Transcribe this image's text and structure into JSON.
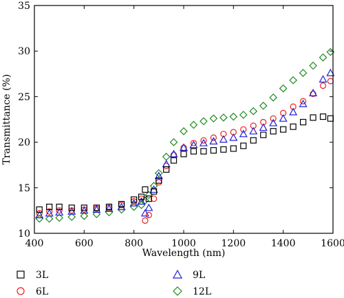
{
  "chart_data": {
    "type": "scatter",
    "title": "",
    "xlabel": "Wavelength (nm)",
    "ylabel": "Transmittance (%)",
    "xlim": [
      400,
      1600
    ],
    "ylim": [
      10,
      35
    ],
    "xticks": [
      400,
      600,
      800,
      1000,
      1200,
      1400,
      1600
    ],
    "yticks": [
      10,
      15,
      20,
      25,
      30,
      35
    ],
    "x_tick_labels": [
      "400",
      "600",
      "800",
      "1000",
      "1200",
      "1400",
      "1600"
    ],
    "y_tick_labels": [
      "10",
      "15",
      "20",
      "25",
      "30",
      "35"
    ],
    "grid": false,
    "legend_position": "bottom",
    "series": [
      {
        "name": "3L",
        "marker": "square",
        "color": "#000000",
        "x": [
          420,
          460,
          500,
          550,
          600,
          650,
          700,
          750,
          800,
          830,
          845,
          860,
          880,
          900,
          930,
          960,
          1000,
          1040,
          1080,
          1120,
          1160,
          1200,
          1240,
          1280,
          1320,
          1360,
          1400,
          1440,
          1480,
          1520,
          1560,
          1590
        ],
        "y": [
          12.6,
          12.9,
          12.9,
          12.8,
          12.8,
          12.8,
          12.9,
          13.2,
          13.7,
          14.0,
          14.8,
          13.8,
          14.6,
          15.8,
          17.0,
          18.0,
          18.7,
          19.0,
          19.0,
          19.1,
          19.2,
          19.3,
          19.6,
          20.2,
          20.8,
          21.2,
          21.4,
          21.7,
          22.2,
          22.7,
          22.8,
          22.6
        ]
      },
      {
        "name": "6L",
        "marker": "circle",
        "color": "#ee1c1c",
        "x": [
          420,
          460,
          500,
          550,
          600,
          650,
          700,
          750,
          800,
          830,
          845,
          860,
          880,
          900,
          930,
          960,
          1000,
          1040,
          1080,
          1120,
          1160,
          1200,
          1240,
          1280,
          1320,
          1360,
          1400,
          1440,
          1480,
          1520,
          1560,
          1590
        ],
        "y": [
          12.2,
          12.4,
          12.5,
          12.5,
          12.6,
          12.7,
          12.8,
          13.1,
          13.5,
          13.8,
          11.4,
          12.0,
          13.8,
          15.6,
          17.4,
          18.6,
          19.4,
          19.9,
          20.2,
          20.5,
          20.9,
          21.1,
          21.4,
          21.8,
          22.2,
          22.6,
          23.2,
          23.9,
          24.5,
          25.3,
          26.2,
          26.7
        ]
      },
      {
        "name": "9L",
        "marker": "triangle",
        "color": "#1f1fd6",
        "x": [
          420,
          460,
          500,
          550,
          600,
          650,
          700,
          750,
          800,
          830,
          845,
          860,
          880,
          900,
          930,
          960,
          1000,
          1040,
          1080,
          1120,
          1160,
          1200,
          1240,
          1280,
          1320,
          1360,
          1400,
          1440,
          1480,
          1520,
          1560,
          1590
        ],
        "y": [
          12.0,
          12.2,
          12.3,
          12.4,
          12.5,
          12.6,
          12.7,
          12.9,
          13.3,
          13.5,
          12.2,
          12.8,
          14.8,
          16.3,
          17.6,
          18.7,
          19.4,
          19.7,
          19.9,
          20.1,
          20.3,
          20.5,
          20.9,
          21.2,
          21.6,
          22.1,
          22.6,
          23.3,
          24.2,
          25.4,
          26.9,
          27.6
        ]
      },
      {
        "name": "12L",
        "marker": "diamond",
        "color": "#1f8a1f",
        "x": [
          420,
          460,
          500,
          550,
          600,
          650,
          700,
          750,
          800,
          830,
          845,
          860,
          880,
          900,
          930,
          960,
          1000,
          1040,
          1080,
          1120,
          1160,
          1200,
          1240,
          1280,
          1320,
          1360,
          1400,
          1440,
          1480,
          1520,
          1560,
          1590
        ],
        "y": [
          11.6,
          11.6,
          11.7,
          11.8,
          11.9,
          12.1,
          12.3,
          12.6,
          12.9,
          13.1,
          13.6,
          14.2,
          15.2,
          16.6,
          18.4,
          20.0,
          21.2,
          21.9,
          22.3,
          22.6,
          22.7,
          22.8,
          23.0,
          23.4,
          24.0,
          24.9,
          25.9,
          26.8,
          27.6,
          28.4,
          29.3,
          29.9
        ]
      }
    ]
  }
}
